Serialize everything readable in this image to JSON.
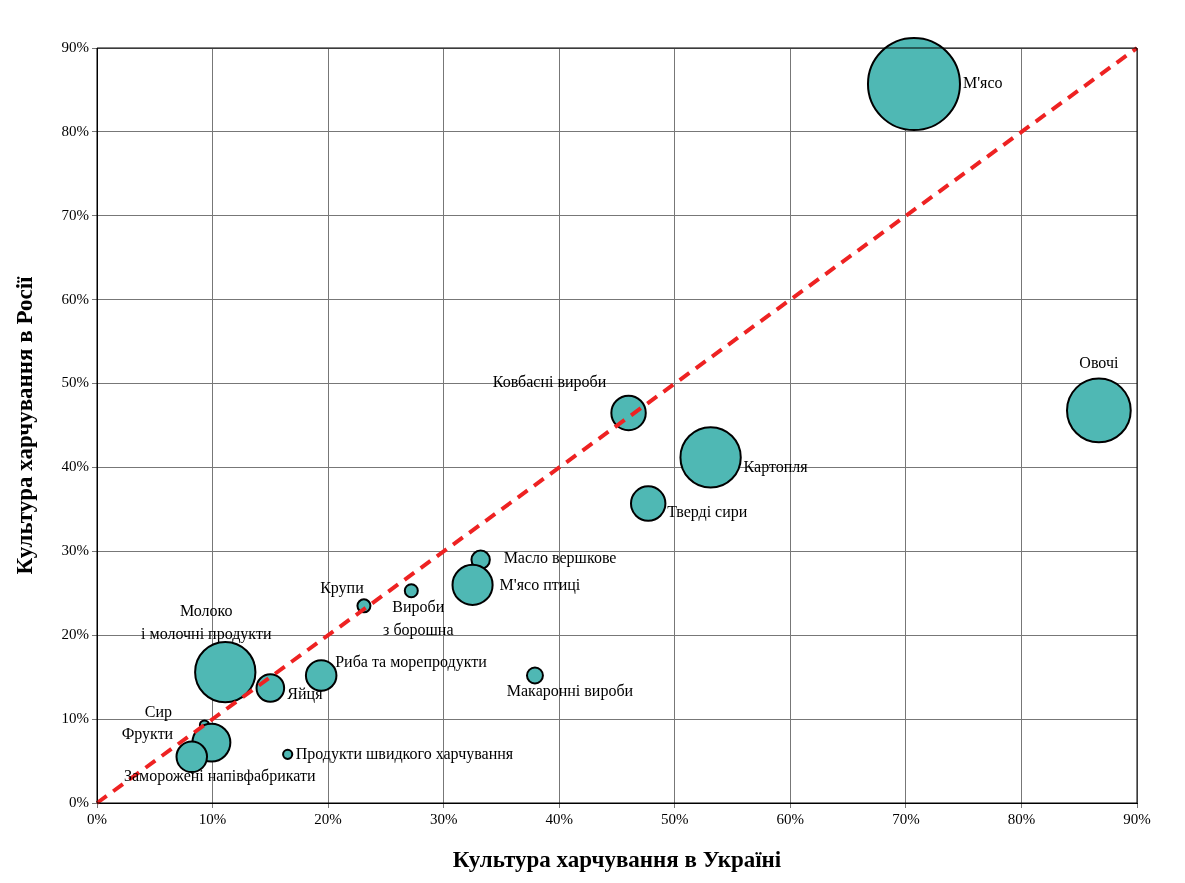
{
  "chart_data": {
    "type": "bubble",
    "xlabel": "Культура харчування в Україні",
    "ylabel": "Культура харчування в Росії",
    "xlim": [
      0,
      90
    ],
    "ylim": [
      0,
      90
    ],
    "xticks": [
      {
        "value": 0,
        "label": "0%"
      },
      {
        "value": 10,
        "label": "10%"
      },
      {
        "value": 20,
        "label": "20%"
      },
      {
        "value": 30,
        "label": "30%"
      },
      {
        "value": 40,
        "label": "40%"
      },
      {
        "value": 50,
        "label": "50%"
      },
      {
        "value": 60,
        "label": "60%"
      },
      {
        "value": 70,
        "label": "70%"
      },
      {
        "value": 80,
        "label": "80%"
      },
      {
        "value": 90,
        "label": "90%"
      }
    ],
    "yticks": [
      {
        "value": 0,
        "label": "0%"
      },
      {
        "value": 10,
        "label": "10%"
      },
      {
        "value": 20,
        "label": "20%"
      },
      {
        "value": 30,
        "label": "30%"
      },
      {
        "value": 40,
        "label": "40%"
      },
      {
        "value": 50,
        "label": "50%"
      },
      {
        "value": 60,
        "label": "60%"
      },
      {
        "value": 70,
        "label": "70%"
      },
      {
        "value": 80,
        "label": "80%"
      },
      {
        "value": 90,
        "label": "90%"
      }
    ],
    "grid": true,
    "legend": false,
    "series": [
      {
        "color": "#4fb8b4",
        "x": [
          70.7,
          86.7,
          46.0,
          53.1,
          47.7,
          33.2,
          32.5,
          23.1,
          27.2,
          11.1,
          15.0,
          19.4,
          37.9,
          9.3,
          9.9,
          8.2,
          16.5
        ],
        "values": [
          85.7,
          46.8,
          46.5,
          41.2,
          35.7,
          29.0,
          26.0,
          23.5,
          25.3,
          15.6,
          13.7,
          15.2,
          15.2,
          9.3,
          7.2,
          5.5,
          5.8
        ],
        "sizes": [
          1,
          0.48,
          0.14,
          0.43,
          0.14,
          0.04,
          0.19,
          0.02,
          0.02,
          0.43,
          0.09,
          0.11,
          0.03,
          0.01,
          0.17,
          0.11,
          0.01
        ]
      },
      {
        "type": "line",
        "color": "#ee2222",
        "line_style": "dashed",
        "marker": "none",
        "x": [
          0,
          90
        ],
        "values": [
          0,
          90
        ]
      }
    ],
    "annotations": [
      "М'ясо",
      {
        "text": "Овочі",
        "x": 86.7,
        "y": 46.8
      },
      {
        "text": "Ковбасні вироби",
        "x": 46.0,
        "y": 46.5
      },
      {
        "text": "Картопля",
        "x": 53.1,
        "y": 41.2
      },
      {
        "text": "Тверді сири",
        "x": 47.7,
        "y": 35.7
      },
      {
        "text": "Масло вершкове",
        "x": 33.2,
        "y": 29.0
      },
      {
        "text": "М'ясо птиці",
        "x": 32.5,
        "y": 26.0
      },
      {
        "text": "Крупи",
        "x": 23.1,
        "y": 23.5
      },
      {
        "text": "Вироби\nз борошна",
        "x": 27.2,
        "y": 25.3
      },
      {
        "text": "Молоко\nі молочні продукти",
        "x": 11.1,
        "y": 15.6
      },
      {
        "text": "Яйця",
        "x": 15.0,
        "y": 13.7
      },
      {
        "text": "Риба та морепродукти",
        "x": 19.4,
        "y": 15.2
      },
      {
        "text": "Макаронні вироби",
        "x": 37.9,
        "y": 15.2
      },
      {
        "text": "Сир",
        "x": 9.3,
        "y": 9.3
      },
      {
        "text": "Фрукти",
        "x": 9.9,
        "y": 7.2
      },
      {
        "text": "Заморожені напівфабрикати",
        "x": 8.2,
        "y": 5.5
      },
      {
        "text": "Продукти швидкого харчування",
        "x": 16.5,
        "y": 5.8
      }
    ]
  }
}
